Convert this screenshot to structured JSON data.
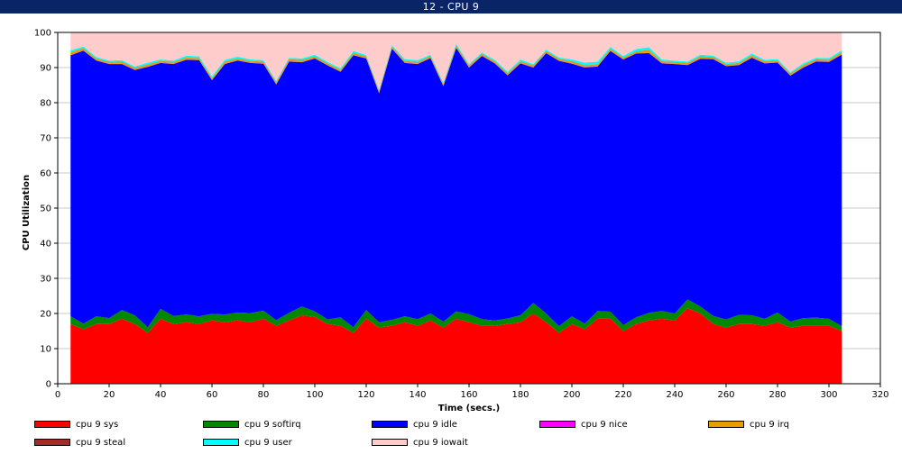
{
  "window": {
    "title": "12 - CPU 9"
  },
  "chart_data": {
    "type": "area",
    "stacked": true,
    "title": "",
    "xlabel": "Time (secs.)",
    "ylabel": "CPU Utilization",
    "xlim": [
      0,
      320
    ],
    "ylim": [
      0,
      100
    ],
    "xticks": [
      0,
      20,
      40,
      60,
      80,
      100,
      120,
      140,
      160,
      180,
      200,
      220,
      240,
      260,
      280,
      300,
      320
    ],
    "yticks": [
      0,
      10,
      20,
      30,
      40,
      50,
      60,
      70,
      80,
      90,
      100
    ],
    "grid": true,
    "legend_position": "bottom",
    "x": [
      5,
      10,
      15,
      20,
      25,
      30,
      35,
      40,
      45,
      50,
      55,
      60,
      65,
      70,
      75,
      80,
      85,
      90,
      95,
      100,
      105,
      110,
      115,
      120,
      125,
      130,
      135,
      140,
      145,
      150,
      155,
      160,
      165,
      170,
      175,
      180,
      185,
      190,
      195,
      200,
      205,
      210,
      215,
      220,
      225,
      230,
      235,
      240,
      245,
      250,
      255,
      260,
      265,
      270,
      275,
      280,
      285,
      290,
      295,
      300,
      305
    ],
    "series": [
      {
        "name": "cpu 9 sys",
        "color": "#ff0000",
        "values": [
          17,
          15.5,
          17,
          17,
          18.5,
          17,
          14.5,
          18.5,
          17,
          17.5,
          17,
          18,
          17.5,
          18,
          17.5,
          18.5,
          16.5,
          18,
          19.5,
          19,
          17,
          16.5,
          14.5,
          18.5,
          16,
          16.5,
          17.5,
          16.5,
          18,
          16,
          18.5,
          17.5,
          16.5,
          16.5,
          17,
          17.5,
          20,
          17.5,
          14.5,
          17,
          15.5,
          18.5,
          18.5,
          15,
          17,
          18,
          18.5,
          18,
          21.5,
          20,
          17,
          16,
          17,
          17,
          16.5,
          17.5,
          16,
          16.5,
          16.5,
          16.5,
          15
        ]
      },
      {
        "name": "cpu 9 softirq",
        "color": "#008800",
        "values": [
          2.2,
          1.6,
          2.2,
          1.7,
          2.5,
          2.5,
          1.6,
          2.8,
          2.3,
          2.2,
          2.2,
          1.9,
          2.2,
          2.3,
          2.6,
          2.3,
          1.6,
          2.2,
          2.5,
          1.6,
          1.3,
          2.4,
          1.6,
          2.5,
          1.5,
          1.7,
          1.7,
          1.9,
          2.0,
          1.7,
          2.1,
          2.3,
          1.9,
          1.5,
          1.6,
          2.0,
          3.0,
          2.5,
          1.9,
          2.2,
          1.6,
          2.2,
          2.0,
          1.7,
          1.9,
          2.2,
          2.2,
          2.0,
          2.5,
          2.0,
          2.3,
          2.3,
          2.6,
          2.5,
          2.0,
          2.8,
          1.7,
          2.2,
          2.3,
          2.0,
          1.4
        ]
      },
      {
        "name": "cpu 9 idle",
        "color": "#0000ff",
        "values": [
          74.3,
          77.7,
          72.8,
          72.3,
          70.0,
          69.8,
          74.1,
          70.0,
          71.7,
          72.5,
          72.9,
          66.5,
          71.3,
          71.7,
          71.2,
          70.3,
          67.1,
          71.5,
          69.5,
          72.0,
          72.3,
          69.9,
          77.4,
          71.6,
          65.2,
          77.2,
          72.1,
          72.6,
          72.7,
          67.0,
          75.0,
          70.2,
          74.9,
          73.2,
          69.2,
          71.7,
          67.0,
          74.1,
          75.5,
          71.9,
          72.9,
          69.6,
          74.2,
          75.6,
          75.1,
          73.9,
          70.5,
          71.0,
          66.7,
          70.5,
          73.1,
          72.1,
          71.1,
          73.3,
          72.7,
          71.1,
          70.0,
          71.3,
          72.9,
          73.1,
          77.3
        ]
      },
      {
        "name": "cpu 9 nice",
        "color": "#ff00ff",
        "values": [
          0.05,
          0.05,
          0.05,
          0.05,
          0.05,
          0.05,
          0.05,
          0.05,
          0.05,
          0.05,
          0.05,
          0.05,
          0.05,
          0.05,
          0.05,
          0.05,
          0.05,
          0.05,
          0.05,
          0.05,
          0.05,
          0.05,
          0.05,
          0.05,
          0.05,
          0.05,
          0.05,
          0.05,
          0.05,
          0.05,
          0.05,
          0.05,
          0.05,
          0.05,
          0.05,
          0.05,
          0.05,
          0.05,
          0.05,
          0.05,
          0.05,
          0.05,
          0.05,
          0.05,
          0.05,
          0.05,
          0.05,
          0.05,
          0.05,
          0.05,
          0.05,
          0.05,
          0.05,
          0.05,
          0.05,
          0.05,
          0.05,
          0.05,
          0.05,
          0.05,
          0.05
        ]
      },
      {
        "name": "cpu 9 irq",
        "color": "#e69d00",
        "values": [
          0.8,
          0.6,
          0.5,
          0.5,
          0.6,
          0.5,
          0.6,
          0.5,
          0.5,
          0.6,
          0.5,
          0.5,
          0.6,
          0.5,
          0.5,
          0.5,
          0.5,
          0.6,
          0.5,
          0.5,
          0.5,
          0.5,
          0.6,
          0.5,
          0.5,
          0.5,
          0.5,
          0.5,
          0.5,
          0.5,
          0.6,
          0.5,
          0.5,
          0.5,
          0.5,
          0.5,
          0.5,
          0.5,
          0.5,
          0.6,
          0.5,
          0.5,
          0.6,
          0.5,
          0.5,
          0.8,
          0.5,
          0.5,
          0.5,
          0.6,
          0.5,
          0.5,
          0.5,
          0.6,
          0.5,
          0.5,
          0.5,
          0.6,
          0.5,
          0.5,
          0.6
        ]
      },
      {
        "name": "cpu 9 steal",
        "color": "#a52a2a",
        "values": [
          0.05,
          0.05,
          0.05,
          0.05,
          0.05,
          0.05,
          0.05,
          0.05,
          0.05,
          0.05,
          0.05,
          0.05,
          0.05,
          0.05,
          0.05,
          0.05,
          0.05,
          0.05,
          0.05,
          0.05,
          0.05,
          0.05,
          0.05,
          0.05,
          0.05,
          0.05,
          0.05,
          0.05,
          0.05,
          0.05,
          0.05,
          0.05,
          0.05,
          0.05,
          0.05,
          0.05,
          0.05,
          0.05,
          0.05,
          0.05,
          0.05,
          0.05,
          0.05,
          0.05,
          0.05,
          0.05,
          0.05,
          0.05,
          0.05,
          0.05,
          0.05,
          0.05,
          0.05,
          0.05,
          0.05,
          0.05,
          0.05,
          0.05,
          0.05,
          0.05,
          0.05
        ]
      },
      {
        "name": "cpu 9 user",
        "color": "#00ffff",
        "values": [
          0.5,
          0.5,
          0.4,
          0.4,
          0.4,
          0.4,
          0.5,
          0.4,
          0.4,
          0.5,
          0.5,
          0.5,
          0.5,
          0.5,
          0.4,
          0.4,
          0.4,
          0.4,
          0.5,
          0.5,
          0.4,
          0.4,
          0.5,
          0.4,
          0.4,
          0.4,
          0.5,
          0.5,
          0.4,
          0.4,
          0.5,
          0.4,
          0.4,
          0.4,
          0.4,
          0.5,
          0.4,
          0.4,
          0.4,
          0.5,
          0.8,
          0.8,
          0.5,
          0.4,
          0.7,
          0.8,
          0.5,
          0.4,
          0.4,
          0.5,
          0.4,
          0.4,
          0.5,
          0.5,
          0.4,
          0.4,
          0.4,
          0.5,
          0.5,
          0.5,
          0.5
        ]
      },
      {
        "name": "cpu 9 iowait",
        "color": "#ffcccc",
        "values": [
          5.1,
          4.0,
          7.0,
          8.0,
          7.9,
          9.7,
          8.6,
          7.7,
          8.0,
          6.7,
          6.8,
          12.5,
          7.8,
          6.9,
          7.8,
          7.9,
          13.8,
          7.2,
          7.4,
          6.3,
          8.4,
          10.2,
          5.3,
          6.4,
          16.3,
          3.6,
          7.6,
          7.9,
          6.3,
          14.3,
          3.2,
          9.0,
          5.7,
          7.8,
          11.2,
          7.7,
          8.9,
          4.9,
          7.6,
          7.7,
          8.6,
          8.3,
          4.1,
          6.7,
          4.7,
          4.2,
          7.8,
          8.0,
          8.3,
          6.3,
          6.6,
          8.6,
          8.2,
          6.0,
          7.8,
          7.7,
          11.3,
          8.9,
          7.2,
          7.3,
          5.1
        ]
      }
    ]
  }
}
